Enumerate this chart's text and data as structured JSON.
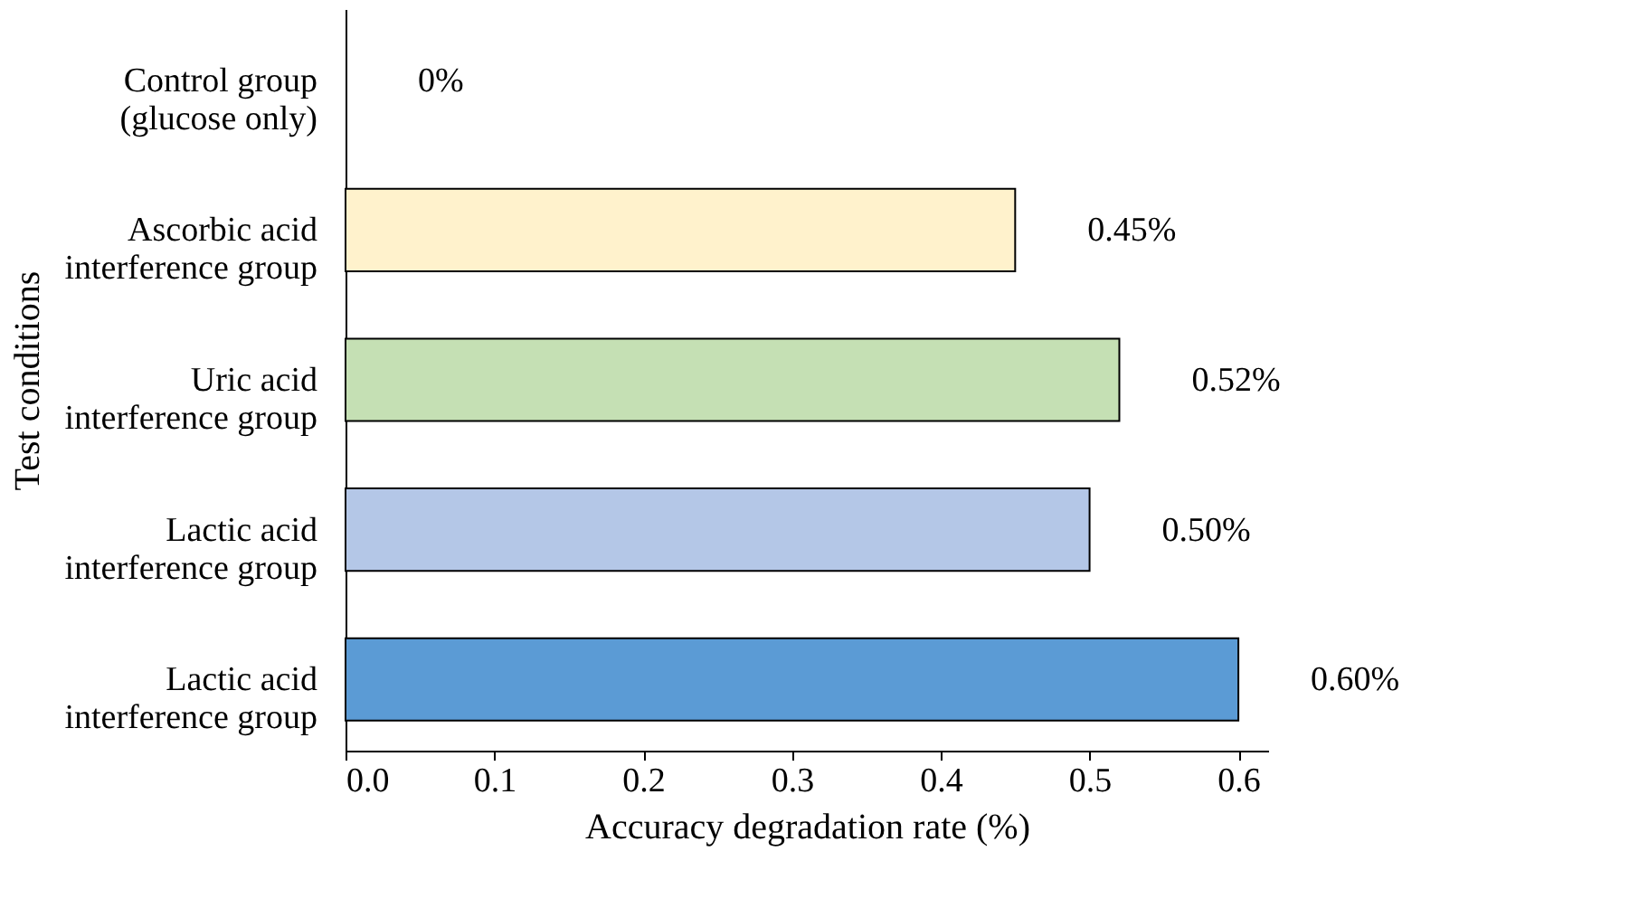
{
  "chart_data": {
    "type": "bar",
    "orientation": "horizontal",
    "xlabel": "Accuracy degradation rate (%)",
    "ylabel": "Test conditions",
    "categories": [
      "Control group\n(glucose only)",
      "Ascorbic acid\ninterference group",
      "Uric acid\ninterference group",
      "Lactic acid\ninterference group",
      "Lactic acid\ninterference group"
    ],
    "values": [
      0,
      0.45,
      0.52,
      0.5,
      0.6
    ],
    "value_labels": [
      "0%",
      "0.45%",
      "0.52%",
      "0.50%",
      "0.60%"
    ],
    "colors": [
      "#ffffff",
      "#fff2cc",
      "#c5e0b4",
      "#b4c7e7",
      "#5b9bd5"
    ],
    "xlim": [
      0,
      0.62
    ],
    "xticks": [
      {
        "value": 0,
        "label": "0.0"
      },
      {
        "value": 0.1,
        "label": "0.1"
      },
      {
        "value": 0.2,
        "label": "0.2"
      },
      {
        "value": 0.3,
        "label": "0.3"
      },
      {
        "value": 0.4,
        "label": "0.4"
      },
      {
        "value": 0.5,
        "label": "0.5"
      },
      {
        "value": 0.6,
        "label": "0.6"
      }
    ],
    "grid": false
  }
}
